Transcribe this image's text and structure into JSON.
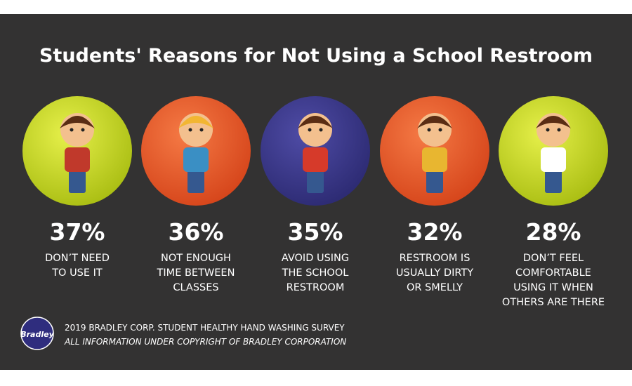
{
  "title": "Students' Reasons for Not Using a School Restroom",
  "items": [
    {
      "percent": "37%",
      "label": [
        "DON’T NEED",
        "TO USE IT"
      ]
    },
    {
      "percent": "36%",
      "label": [
        "NOT ENOUGH",
        "TIME BETWEEN",
        "CLASSES"
      ]
    },
    {
      "percent": "35%",
      "label": [
        "AVOID USING",
        "THE SCHOOL",
        "RESTROOM"
      ]
    },
    {
      "percent": "32%",
      "label": [
        "RESTROOM IS",
        "USUALLY DIRTY",
        "OR SMELLY"
      ]
    },
    {
      "percent": "28%",
      "label": [
        "DON’T FEEL",
        "COMFORTABLE",
        "USING IT WHEN",
        "OTHERS ARE THERE"
      ]
    }
  ],
  "footer": {
    "logo": "Bradley",
    "survey": "2019 BRADLEY CORP. STUDENT HEALTHY HAND WASHING SURVEY",
    "copyright": "ALL INFORMATION UNDER COPYRIGHT OF BRADLEY CORPORATION"
  }
}
